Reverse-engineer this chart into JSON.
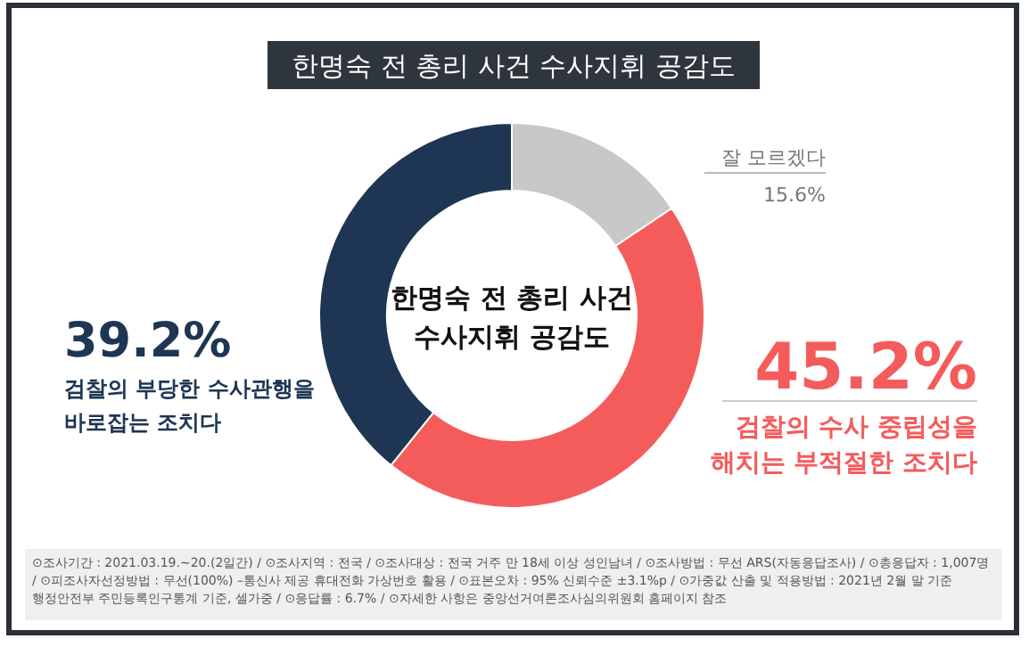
{
  "chart_data": {
    "type": "donut",
    "title": "한명숙 전 총리 사건 수사지휘 공감도",
    "categories": [
      "잘 모르겠다",
      "검찰의 수사 중립성을 해치는 부적절한 조치다",
      "검찰의 부당한 수사관행을 바로잡는 조치다"
    ],
    "values": [
      15.6,
      45.2,
      39.2
    ],
    "colors": [
      "#c8c8c8",
      "#f45c5c",
      "#1e3654"
    ],
    "value_labels": [
      "15.6%",
      "45.2%",
      "39.2%"
    ],
    "legend": false,
    "annotations": [
      "한명숙 전 총리 사건 수사지휘 공감도",
      "⊙조사기간 : 2021.03.19.~20.(2일간) / ⊙조사지역 : 전국 / ⊙조사대상 : 전국 거주 만 18세 이상 성인남녀 / ⊙조사방법 : 무선 ARS(자동응답조사) / ⊙총응답자 : 1,007명 / ⊙피조사자선정방법 : 무선(100%) –통신사 제공 휴대전화 가상번호 활용 / ⊙표본오차 : 95% 신뢰수준 ±3.1%p / ⊙가중값 산출 및 적용방법 : 2021년 2월 말 기준 행정안전부 주민등록인구통계 기준, 셀가중 / ⊙응답률 : 6.7% / ⊙자세한 사항은 중앙선거여론조사심의위원회 홈페이지 참조"
    ]
  }
}
